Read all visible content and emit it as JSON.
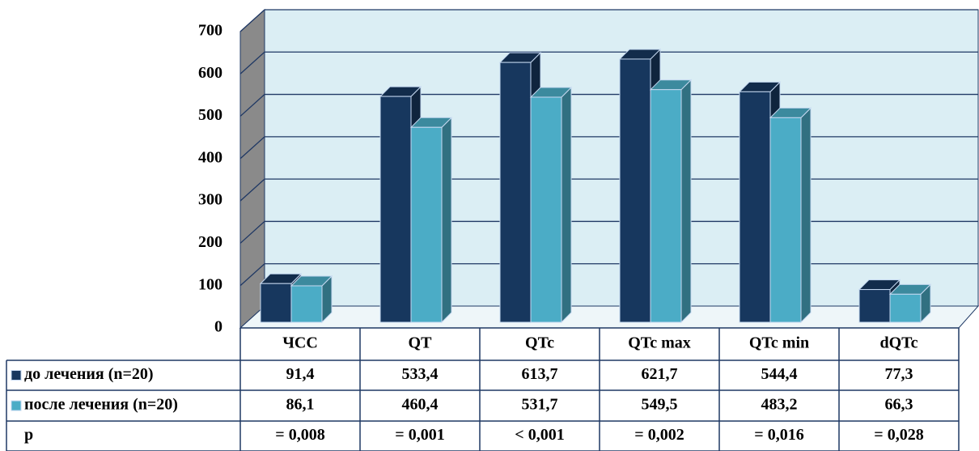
{
  "chart_data": {
    "type": "bar3d",
    "categories": [
      "ЧСС",
      "QT",
      "QTc",
      "QTc max",
      "QTc min",
      "dQTc"
    ],
    "series": [
      {
        "name": "до лечения (n=20)",
        "color": "#17375e",
        "values": [
          91.4,
          533.4,
          613.7,
          621.7,
          544.4,
          77.3
        ],
        "value_labels": [
          "91,4",
          "533,4",
          "613,7",
          "621,7",
          "544,4",
          "77,3"
        ]
      },
      {
        "name": "после лечения (n=20)",
        "color": "#4bacc6",
        "values": [
          86.1,
          460.4,
          531.7,
          549.5,
          483.2,
          66.3
        ],
        "value_labels": [
          "86,1",
          "460,4",
          "531,7",
          "549,5",
          "483,2",
          "66,3"
        ]
      }
    ],
    "p_label": "p",
    "p_values": [
      "= 0,008",
      "= 0,001",
      "< 0,001",
      "= 0,002",
      "= 0,016",
      "= 0,028"
    ],
    "ylim": [
      0,
      700
    ],
    "yticks": [
      0,
      100,
      200,
      300,
      400,
      500,
      600,
      700
    ],
    "grid": true
  }
}
